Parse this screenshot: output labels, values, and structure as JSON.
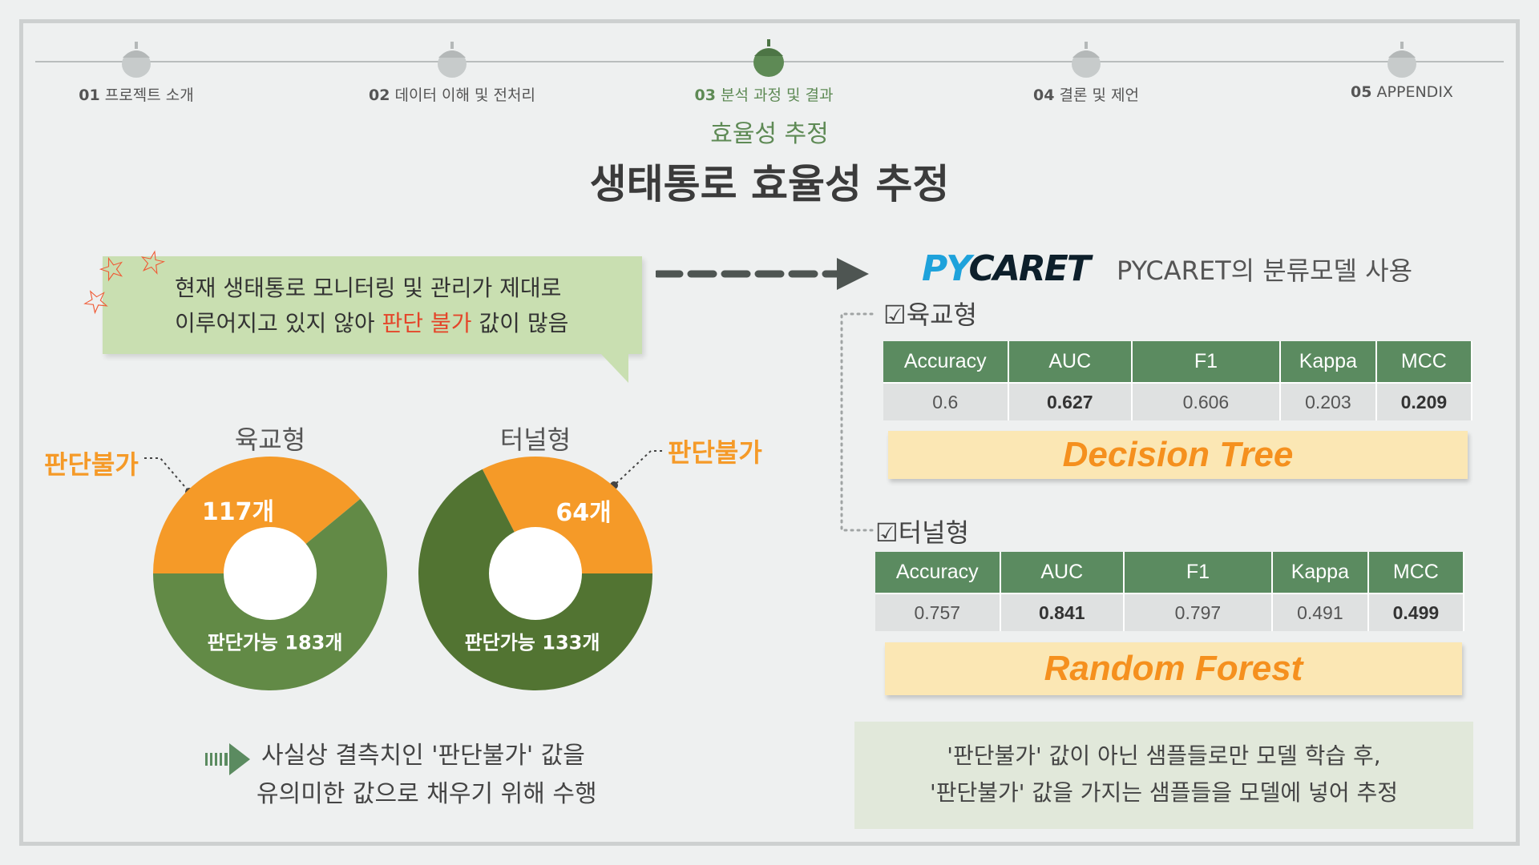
{
  "nav": {
    "steps": [
      {
        "num": "01",
        "label": "프로젝트 소개"
      },
      {
        "num": "02",
        "label": "데이터 이해 및 전처리"
      },
      {
        "num": "03",
        "label": "분석 과정 및 결과"
      },
      {
        "num": "04",
        "label": "결론 및 제언"
      },
      {
        "num": "05",
        "label": "APPENDIX"
      }
    ],
    "active_index": 2
  },
  "subtitle": "효율성 추정",
  "title": "생태통로 효율성 추정",
  "note": {
    "line1": "현재 생태통로 모니터링 및 관리가 제대로",
    "line2_pre": "이루어지고 있지 않아 ",
    "line2_red": "판단 불가",
    "line2_post": " 값이 많음"
  },
  "donuts": [
    {
      "title": "육교형",
      "unknown_label": "판단불가",
      "unknown_value": "117개",
      "known_label": "판단가능 183개",
      "unknown_count": 117,
      "known_count": 183
    },
    {
      "title": "터널형",
      "unknown_label": "판단불가",
      "unknown_value": "64개",
      "known_label": "판단가능 133개",
      "unknown_count": 64,
      "known_count": 133
    }
  ],
  "pycaret": {
    "logo": "PYCARET",
    "text": "PYCARET의 분류모델 사용"
  },
  "tables": [
    {
      "section": "☑육교형",
      "headers": [
        "Accuracy",
        "AUC",
        "F1",
        "Kappa",
        "MCC"
      ],
      "values": [
        "0.6",
        "0.627",
        "0.606",
        "0.203",
        "0.209"
      ],
      "model": "Decision Tree"
    },
    {
      "section": "☑터널형",
      "headers": [
        "Accuracy",
        "AUC",
        "F1",
        "Kappa",
        "MCC"
      ],
      "values": [
        "0.757",
        "0.841",
        "0.797",
        "0.491",
        "0.499"
      ],
      "model": "Random Forest"
    }
  ],
  "bottom_left": {
    "line1": "사실상 결측치인 '판단불가' 값을",
    "line2": "유의미한 값으로 채우기 위해 수행"
  },
  "bottom_right": {
    "line1": "'판단불가' 값이 아닌 샘플들로만 모델 학습 후,",
    "line2": "'판단불가' 값을 가지는 샘플들을 모델에 넣어 추정"
  },
  "colors": {
    "accent_green": "#5e8a55",
    "orange": "#f59a28",
    "red": "#e4462a",
    "note_bg": "#c9dfb1",
    "table_header": "#5b8b60",
    "model_box": "#fbe7b4",
    "donut_green1": "#628a46",
    "donut_green2": "#527432"
  }
}
